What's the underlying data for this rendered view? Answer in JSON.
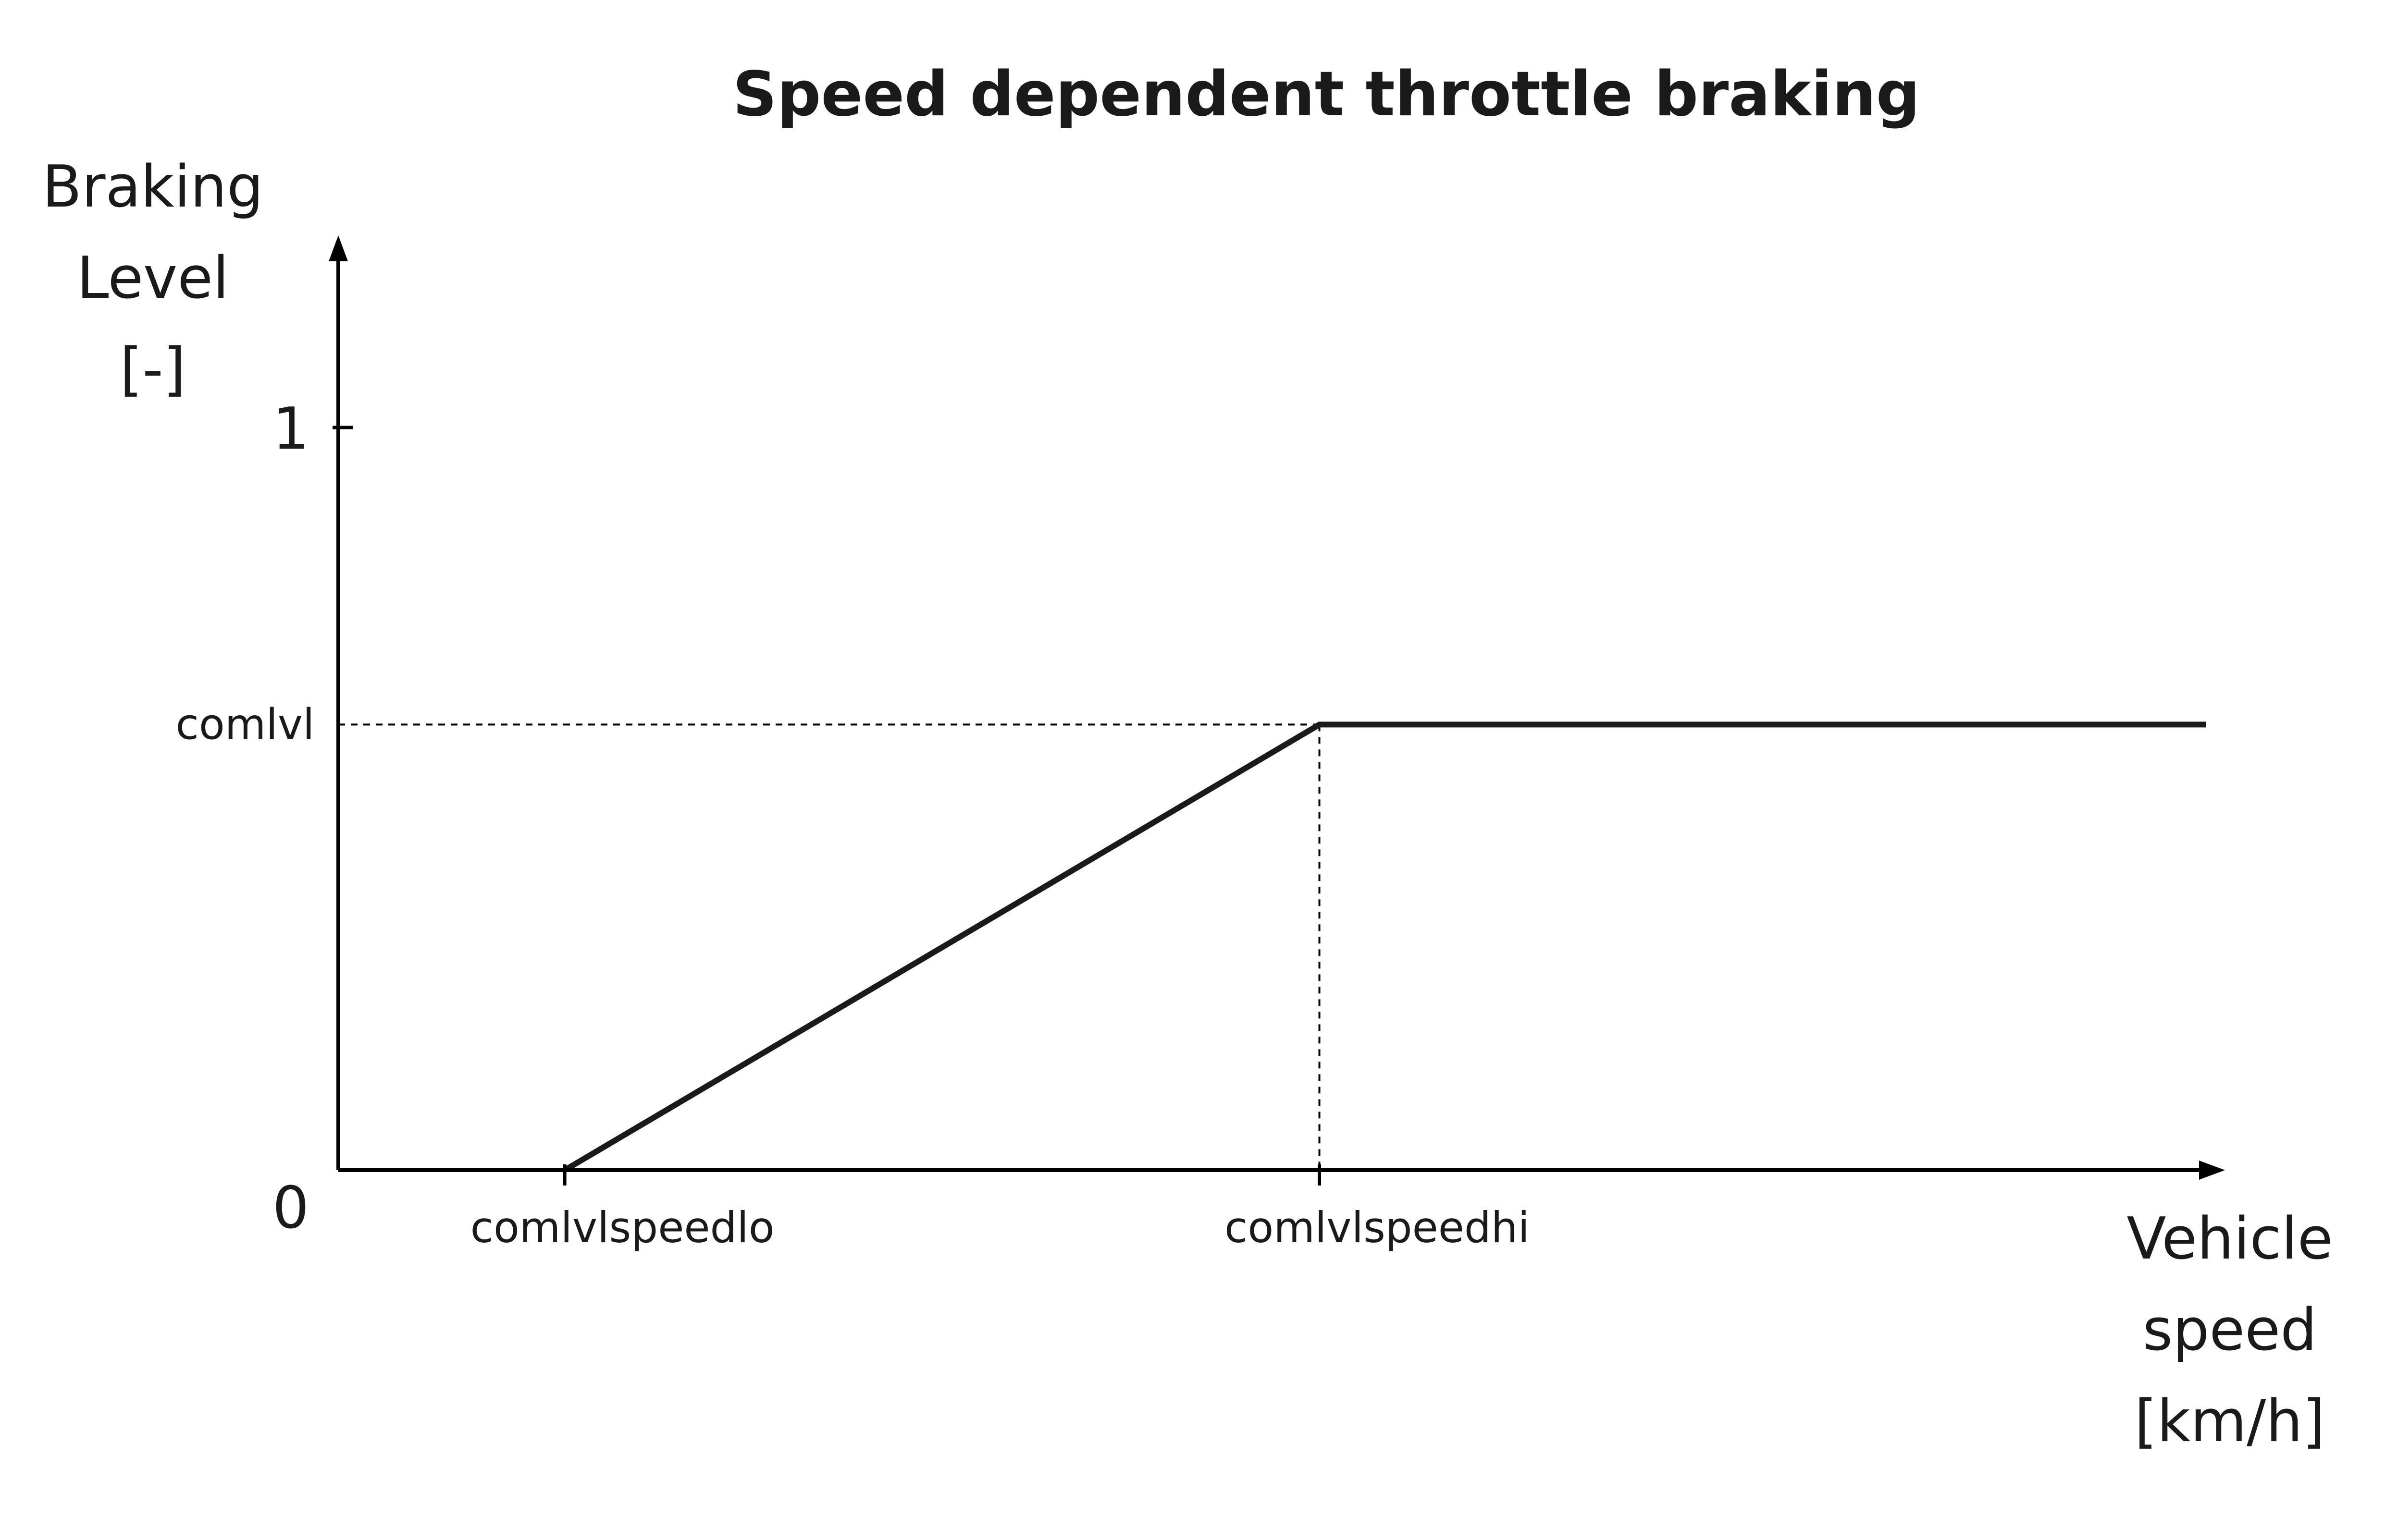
{
  "chart_data": {
    "type": "line",
    "title": "Speed dependent throttle braking",
    "ylabel": [
      "Braking",
      "Level",
      "[-]"
    ],
    "xlabel": [
      "Vehicle",
      "speed",
      "[km/h]"
    ],
    "y_ticks": [
      {
        "value": 0,
        "label": "0"
      },
      {
        "value": 1,
        "label": "1"
      }
    ],
    "y_reference": {
      "value": 0.6,
      "label": "comlvl"
    },
    "x_ticks": [
      {
        "value": 0.12,
        "label": "comlvlspeedlo"
      },
      {
        "value": 0.52,
        "label": "comlvlspeedhi"
      }
    ],
    "xlim": [
      0,
      1
    ],
    "ylim": [
      0,
      1.25
    ],
    "series": [
      {
        "x": [
          0.12,
          0.52,
          0.99
        ],
        "y": [
          0.0,
          0.6,
          0.6
        ]
      }
    ],
    "grid": false,
    "colors": {
      "line": "#1a1a1a",
      "axis": "#000000"
    }
  }
}
